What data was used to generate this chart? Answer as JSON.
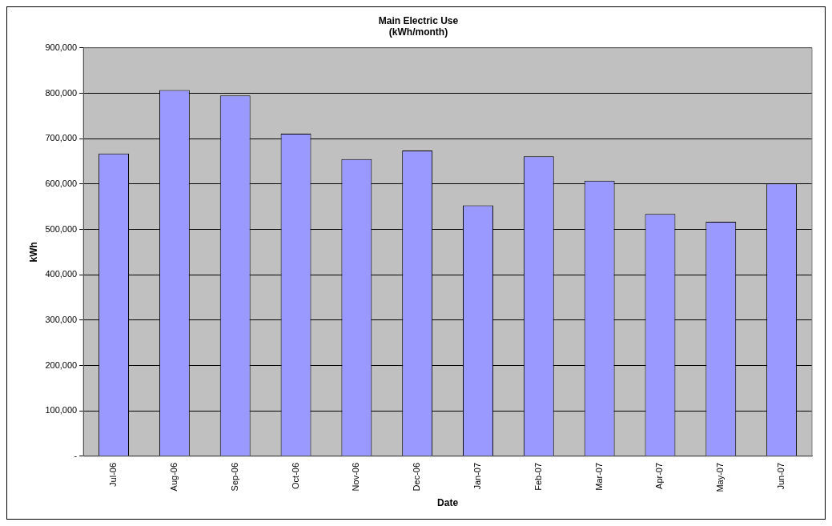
{
  "chart_data": {
    "type": "bar",
    "title": "Main Electric Use",
    "subtitle": "(kWh/month)",
    "xlabel": "Date",
    "ylabel": "kWh",
    "categories": [
      "Jul-06",
      "Aug-06",
      "Sep-06",
      "Oct-06",
      "Nov-06",
      "Dec-06",
      "Jan-07",
      "Feb-07",
      "Mar-07",
      "Apr-07",
      "May-07",
      "Jun-07"
    ],
    "values": [
      667000,
      807000,
      795000,
      711000,
      655000,
      674000,
      553000,
      661000,
      607000,
      534000,
      517000,
      601000
    ],
    "color": "#9999ff",
    "ylim": [
      0,
      900000
    ],
    "yticks": [
      {
        "value": 0,
        "label": "-"
      },
      {
        "value": 100000,
        "label": "100,000"
      },
      {
        "value": 200000,
        "label": "200,000"
      },
      {
        "value": 300000,
        "label": "300,000"
      },
      {
        "value": 400000,
        "label": "400,000"
      },
      {
        "value": 500000,
        "label": "500,000"
      },
      {
        "value": 600000,
        "label": "600,000"
      },
      {
        "value": 700000,
        "label": "700,000"
      },
      {
        "value": 800000,
        "label": "800,000"
      },
      {
        "value": 900000,
        "label": "900,000"
      }
    ],
    "grid": "y",
    "legend": false
  }
}
